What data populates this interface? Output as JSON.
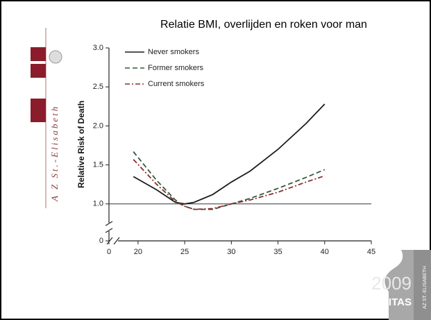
{
  "sidebar": "A Z  St.-Elisabeth",
  "logo": {
    "year": "2009",
    "name": "OBESITAS",
    "org": "AZ ST.-ELISABETH"
  },
  "chart_data": {
    "type": "line",
    "title": "Relatie BMI, overlijden en roken voor man",
    "y_label": "Relative Risk of Death",
    "x": [
      19.5,
      22,
      24,
      25,
      26,
      28,
      30,
      32,
      35,
      38,
      40
    ],
    "series": [
      {
        "name": "Never smokers",
        "color": "#1a1a1a",
        "dash": "solid",
        "values": [
          1.35,
          1.18,
          1.02,
          1.0,
          1.02,
          1.12,
          1.28,
          1.42,
          1.7,
          2.03,
          2.28
        ]
      },
      {
        "name": "Former smokers",
        "color": "#2f5a3c",
        "dash": "dashed",
        "values": [
          1.67,
          1.3,
          1.05,
          0.97,
          0.93,
          0.93,
          1.0,
          1.07,
          1.2,
          1.34,
          1.44
        ]
      },
      {
        "name": "Current smokers",
        "color": "#8a2b2b",
        "dash": "dashdot",
        "values": [
          1.57,
          1.25,
          1.03,
          0.97,
          0.93,
          0.94,
          1.0,
          1.05,
          1.15,
          1.28,
          1.36
        ]
      }
    ],
    "xlim": [
      0,
      45
    ],
    "xticks": [
      0,
      20,
      25,
      30,
      35,
      40,
      45
    ],
    "xbreak": 18,
    "ylim": [
      0,
      3
    ],
    "yticks": [
      0,
      {
        "value": 1,
        "label": "1.0"
      },
      {
        "value": 1.5,
        "label": "1.5"
      },
      {
        "value": 2,
        "label": "2.0"
      },
      {
        "value": 2.5,
        "label": "2.5"
      },
      {
        "value": 3,
        "label": "3.0"
      }
    ],
    "ybreak": 0.9,
    "reference_line": 1,
    "legend": "upper left"
  }
}
